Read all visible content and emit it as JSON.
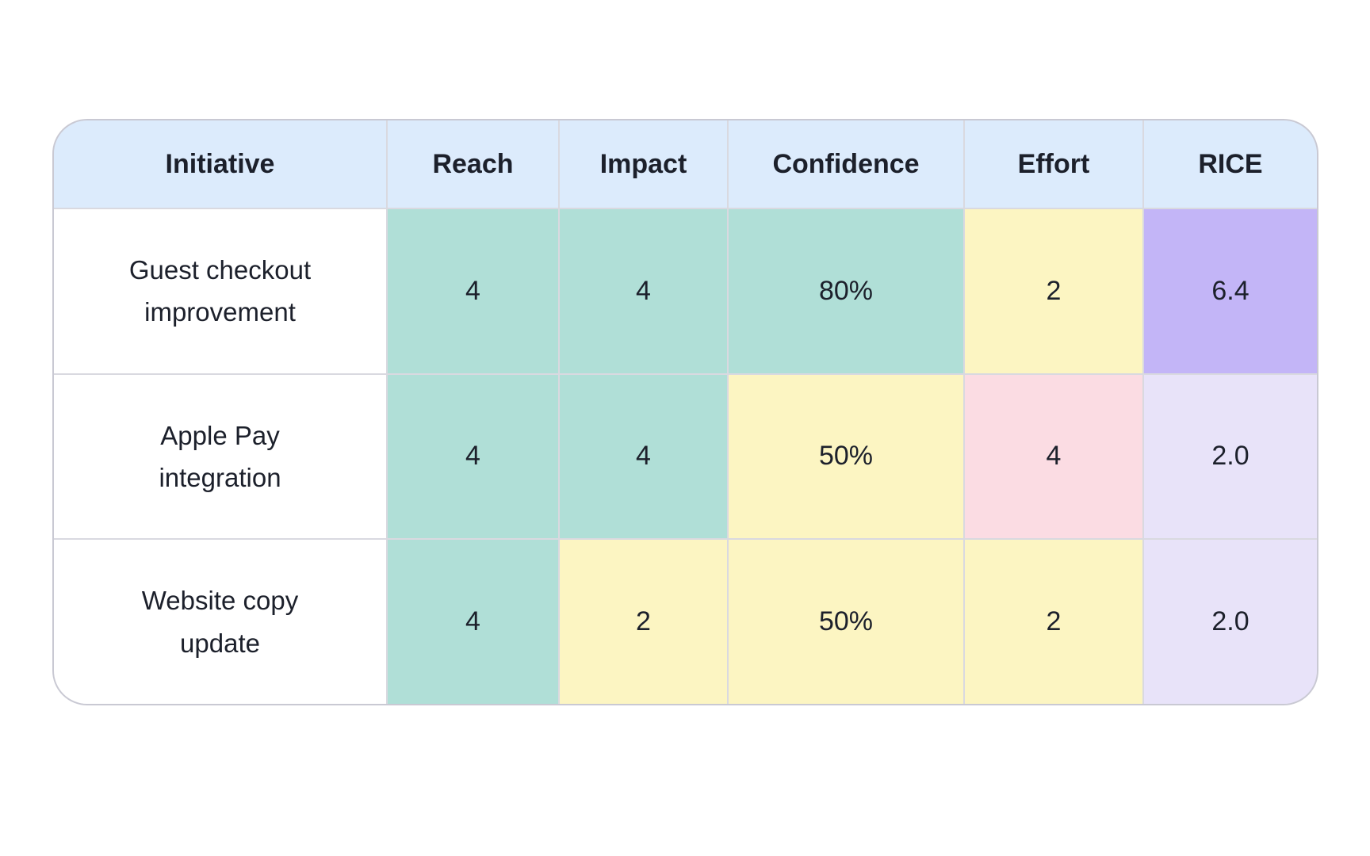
{
  "table": {
    "columns": [
      "Initiative",
      "Reach",
      "Impact",
      "Confidence",
      "Effort",
      "RICE"
    ],
    "rows": [
      {
        "cells": [
          {
            "text": "Guest checkout improvement",
            "tone": "none"
          },
          {
            "text": "4",
            "tone": "good"
          },
          {
            "text": "4",
            "tone": "good"
          },
          {
            "text": "80%",
            "tone": "good"
          },
          {
            "text": "2",
            "tone": "medium"
          },
          {
            "text": "6.4",
            "tone": "rice-high"
          }
        ]
      },
      {
        "cells": [
          {
            "text": "Apple Pay integration",
            "tone": "none"
          },
          {
            "text": "4",
            "tone": "good"
          },
          {
            "text": "4",
            "tone": "good"
          },
          {
            "text": "50%",
            "tone": "medium"
          },
          {
            "text": "4",
            "tone": "bad"
          },
          {
            "text": "2.0",
            "tone": "rice-low"
          }
        ]
      },
      {
        "cells": [
          {
            "text": "Website copy update",
            "tone": "none"
          },
          {
            "text": "4",
            "tone": "good"
          },
          {
            "text": "2",
            "tone": "medium"
          },
          {
            "text": "50%",
            "tone": "medium"
          },
          {
            "text": "2",
            "tone": "medium"
          },
          {
            "text": "2.0",
            "tone": "rice-low"
          }
        ]
      }
    ]
  },
  "colors": {
    "header_bg": "#dcebfc",
    "good": "#b0dfd7",
    "medium": "#fcf5c2",
    "bad": "#fbdce3",
    "rice_high": "#c3b5f7",
    "rice_low": "#e8e3f9",
    "gridline": "#d9d9e0",
    "outer_border": "#c9c9d3",
    "text": "#1c202b",
    "row_label_bg": "#ffffff"
  },
  "chart_data": {
    "type": "table",
    "columns": [
      "Initiative",
      "Reach",
      "Impact",
      "Confidence",
      "Effort",
      "RICE"
    ],
    "rows": [
      [
        "Guest checkout improvement",
        4,
        4,
        "80%",
        2,
        6.4
      ],
      [
        "Apple Pay integration",
        4,
        4,
        "50%",
        4,
        2.0
      ],
      [
        "Website copy update",
        4,
        2,
        "50%",
        2,
        2.0
      ]
    ]
  }
}
